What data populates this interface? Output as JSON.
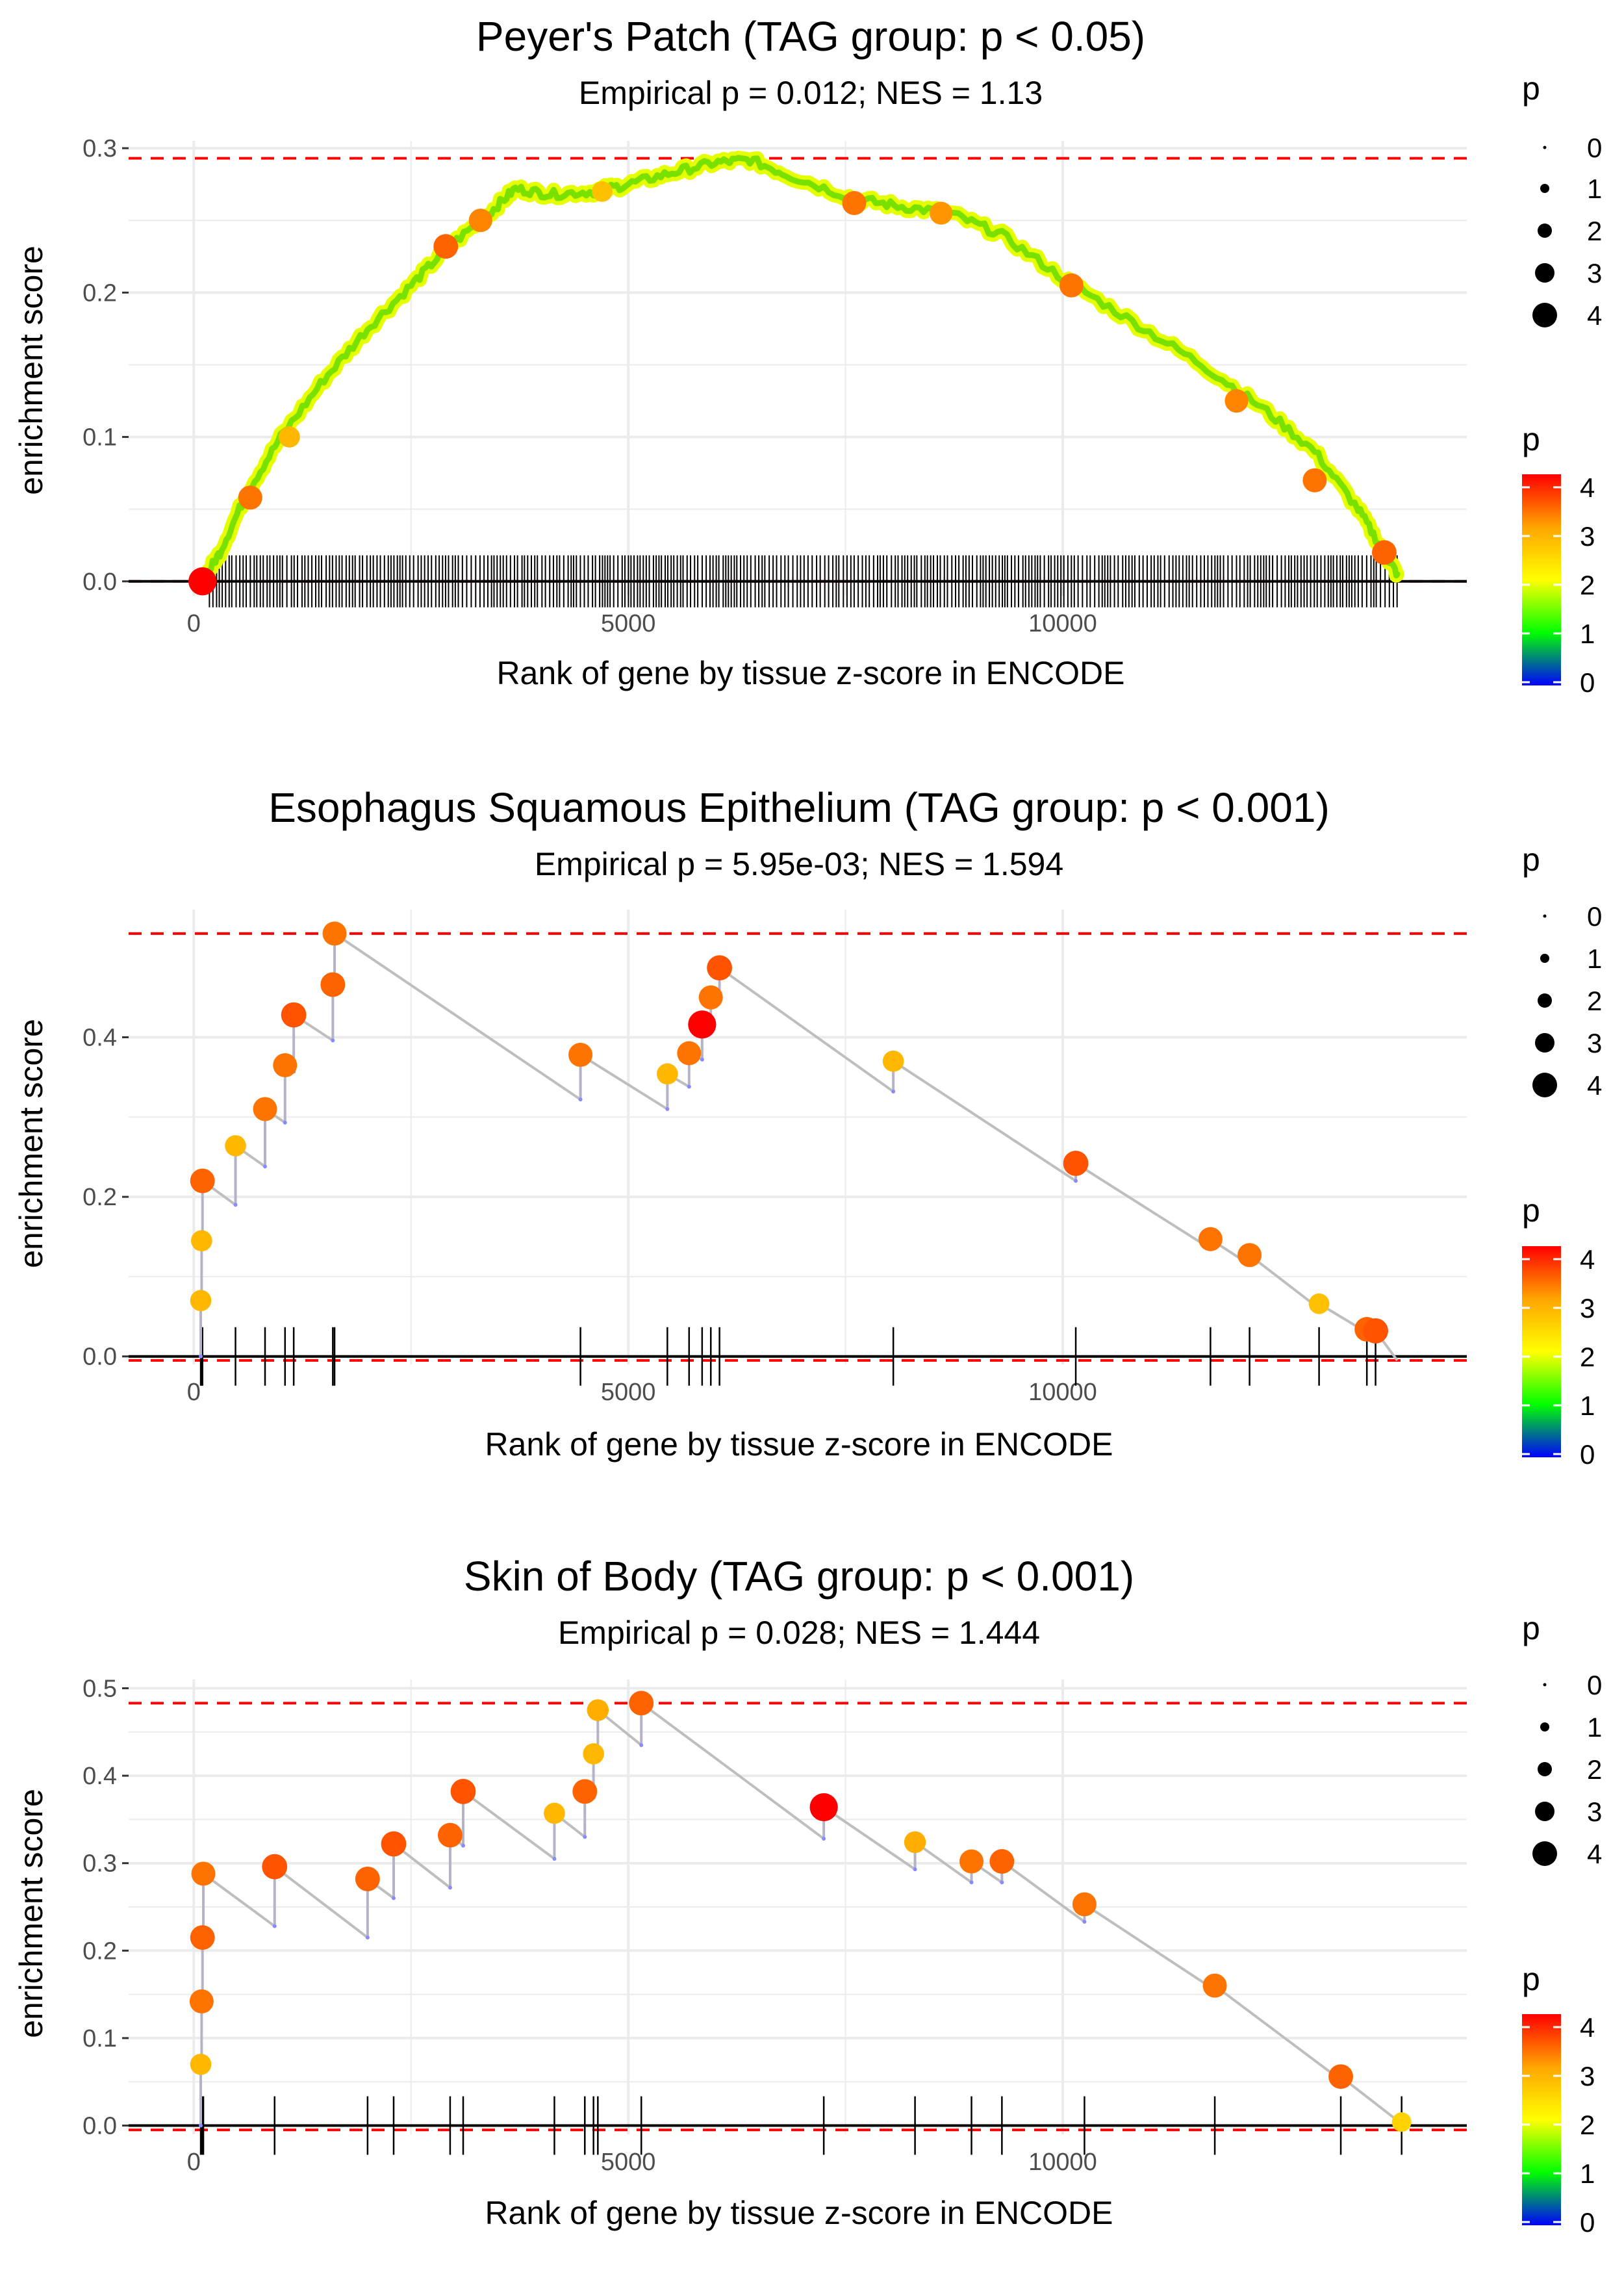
{
  "colors": {
    "grid": "#ebebeb",
    "line": "#bebebe",
    "ref": "#ff0000",
    "axis": "#000000",
    "drop": "#8a8aff"
  },
  "chart_data": [
    {
      "type": "scatter",
      "title": "Peyer's Patch (TAG group: p < 0.05)",
      "subtitle": "Empirical p = 0.012; NES = 1.13",
      "xlabel": "Rank of gene by tissue z-score in ENCODE",
      "ylabel": "enrichment score",
      "xlim": [
        -750,
        14650
      ],
      "ylim": [
        -0.01,
        0.305
      ],
      "xticks": [
        0,
        5000,
        10000
      ],
      "xtick_labels": [
        "0",
        "5000",
        "10000"
      ],
      "yticks": [
        0,
        0.1,
        0.2,
        0.3
      ],
      "ytick_labels": [
        "0.0",
        "0.1",
        "0.2",
        "0.3"
      ],
      "max_es": 0.293,
      "min_es": 0.0,
      "dense": true,
      "curve": [
        [
          100,
          0
        ],
        [
          300,
          0.02
        ],
        [
          600,
          0.06
        ],
        [
          1000,
          0.1
        ],
        [
          1500,
          0.14
        ],
        [
          2000,
          0.175
        ],
        [
          2500,
          0.205
        ],
        [
          2900,
          0.23
        ],
        [
          3400,
          0.255
        ],
        [
          3700,
          0.272
        ],
        [
          4100,
          0.268
        ],
        [
          4600,
          0.27
        ],
        [
          5000,
          0.275
        ],
        [
          5500,
          0.283
        ],
        [
          6000,
          0.29
        ],
        [
          6400,
          0.292
        ],
        [
          6900,
          0.28
        ],
        [
          7600,
          0.265
        ],
        [
          8100,
          0.26
        ],
        [
          8700,
          0.255
        ],
        [
          9300,
          0.24
        ],
        [
          10000,
          0.21
        ],
        [
          10800,
          0.18
        ],
        [
          11600,
          0.15
        ],
        [
          12300,
          0.12
        ],
        [
          12900,
          0.09
        ],
        [
          13400,
          0.05
        ],
        [
          13700,
          0.02
        ],
        [
          13850,
          0.005
        ]
      ],
      "points": [
        [
          100,
          0,
          4
        ],
        [
          650,
          0.058,
          3.3
        ],
        [
          1100,
          0.1,
          2.8
        ],
        [
          2900,
          0.232,
          3.4
        ],
        [
          3300,
          0.25,
          3.2
        ],
        [
          4700,
          0.27,
          2.7
        ],
        [
          7600,
          0.262,
          3.3
        ],
        [
          8600,
          0.255,
          3.1
        ],
        [
          10100,
          0.205,
          3.3
        ],
        [
          12000,
          0.125,
          3.2
        ],
        [
          12900,
          0.07,
          3.3
        ],
        [
          13700,
          0.02,
          3.4
        ]
      ],
      "p_legend": {
        "title": "p",
        "sizes": [
          "0",
          "1",
          "2",
          "3",
          "4"
        ]
      },
      "color_legend": {
        "title": "p",
        "labels": [
          "0",
          "1",
          "2",
          "3",
          "4"
        ]
      }
    },
    {
      "type": "scatter",
      "title": "Esophagus Squamous Epithelium (TAG group: p < 0.001)",
      "subtitle": "Empirical p = 5.95e-03; NES = 1.594",
      "xlabel": "Rank of gene by tissue z-score in ENCODE",
      "ylabel": "enrichment score",
      "xlim": [
        -750,
        14650
      ],
      "ylim": [
        -0.01,
        0.56
      ],
      "xticks": [
        0,
        5000,
        10000
      ],
      "xtick_labels": [
        "0",
        "5000",
        "10000"
      ],
      "yticks": [
        0,
        0.2,
        0.4
      ],
      "ytick_labels": [
        "0.0",
        "0.2",
        "0.4"
      ],
      "max_es": 0.53,
      "min_es": -0.005,
      "dense": false,
      "hits": [
        {
          "x": 80,
          "lo": 0,
          "hi": 0.07,
          "p": 2.8
        },
        {
          "x": 90,
          "lo": 0.07,
          "hi": 0.145,
          "p": 2.8
        },
        {
          "x": 100,
          "lo": 0.145,
          "hi": 0.22,
          "p": 3.4
        },
        {
          "x": 480,
          "lo": 0.19,
          "hi": 0.264,
          "p": 2.8
        },
        {
          "x": 820,
          "lo": 0.238,
          "hi": 0.31,
          "p": 3.3
        },
        {
          "x": 1050,
          "lo": 0.293,
          "hi": 0.365,
          "p": 3.3
        },
        {
          "x": 1150,
          "lo": 0.357,
          "hi": 0.428,
          "p": 3.5
        },
        {
          "x": 1600,
          "lo": 0.396,
          "hi": 0.466,
          "p": 3.4
        },
        {
          "x": 1620,
          "lo": 0.466,
          "hi": 0.53,
          "p": 3.3
        },
        {
          "x": 4450,
          "lo": 0.322,
          "hi": 0.378,
          "p": 3.3
        },
        {
          "x": 5450,
          "lo": 0.31,
          "hi": 0.354,
          "p": 2.8
        },
        {
          "x": 5700,
          "lo": 0.338,
          "hi": 0.38,
          "p": 3.3
        },
        {
          "x": 5850,
          "lo": 0.372,
          "hi": 0.416,
          "p": 4.0
        },
        {
          "x": 5950,
          "lo": 0.41,
          "hi": 0.45,
          "p": 3.3
        },
        {
          "x": 6050,
          "lo": 0.445,
          "hi": 0.487,
          "p": 3.5
        },
        {
          "x": 8050,
          "lo": 0.332,
          "hi": 0.37,
          "p": 2.8
        },
        {
          "x": 10150,
          "lo": 0.22,
          "hi": 0.242,
          "p": 3.5
        },
        {
          "x": 11700,
          "lo": 0.135,
          "hi": 0.147,
          "p": 3.3
        },
        {
          "x": 12150,
          "lo": 0.115,
          "hi": 0.127,
          "p": 3.3
        },
        {
          "x": 12950,
          "lo": 0.06,
          "hi": 0.066,
          "p": 2.7
        },
        {
          "x": 13500,
          "lo": 0.03,
          "hi": 0.034,
          "p": 3.4
        },
        {
          "x": 13600,
          "lo": 0.028,
          "hi": 0.032,
          "p": 3.5
        }
      ],
      "end": [
        13850,
        -0.005
      ],
      "p_legend": {
        "title": "p",
        "sizes": [
          "0",
          "1",
          "2",
          "3",
          "4"
        ]
      },
      "color_legend": {
        "title": "p",
        "labels": [
          "0",
          "1",
          "2",
          "3",
          "4"
        ]
      }
    },
    {
      "type": "scatter",
      "title": "Skin of Body (TAG group: p < 0.001)",
      "subtitle": "Empirical p = 0.028; NES = 1.444",
      "xlabel": "Rank of gene by tissue z-score in ENCODE",
      "ylabel": "enrichment score",
      "xlim": [
        -750,
        14650
      ],
      "ylim": [
        -0.01,
        0.51
      ],
      "xticks": [
        0,
        5000,
        10000
      ],
      "xtick_labels": [
        "0",
        "5000",
        "10000"
      ],
      "yticks": [
        0,
        0.1,
        0.2,
        0.3,
        0.4,
        0.5
      ],
      "ytick_labels": [
        "0.0",
        "0.1",
        "0.2",
        "0.3",
        "0.4",
        "0.5"
      ],
      "max_es": 0.483,
      "min_es": -0.005,
      "dense": false,
      "hits": [
        {
          "x": 80,
          "lo": 0,
          "hi": 0.07,
          "p": 2.8
        },
        {
          "x": 90,
          "lo": 0.07,
          "hi": 0.142,
          "p": 3.3
        },
        {
          "x": 100,
          "lo": 0.142,
          "hi": 0.215,
          "p": 3.4
        },
        {
          "x": 110,
          "lo": 0.215,
          "hi": 0.288,
          "p": 3.3
        },
        {
          "x": 930,
          "lo": 0.228,
          "hi": 0.296,
          "p": 3.5
        },
        {
          "x": 2000,
          "lo": 0.215,
          "hi": 0.282,
          "p": 3.4
        },
        {
          "x": 2300,
          "lo": 0.26,
          "hi": 0.322,
          "p": 3.5
        },
        {
          "x": 2950,
          "lo": 0.272,
          "hi": 0.332,
          "p": 3.4
        },
        {
          "x": 3100,
          "lo": 0.32,
          "hi": 0.382,
          "p": 3.5
        },
        {
          "x": 4150,
          "lo": 0.305,
          "hi": 0.357,
          "p": 2.8
        },
        {
          "x": 4500,
          "lo": 0.33,
          "hi": 0.382,
          "p": 3.4
        },
        {
          "x": 4600,
          "lo": 0.375,
          "hi": 0.425,
          "p": 2.8
        },
        {
          "x": 4650,
          "lo": 0.425,
          "hi": 0.475,
          "p": 2.9
        },
        {
          "x": 5150,
          "lo": 0.435,
          "hi": 0.483,
          "p": 3.4
        },
        {
          "x": 7250,
          "lo": 0.328,
          "hi": 0.364,
          "p": 4.0
        },
        {
          "x": 8300,
          "lo": 0.293,
          "hi": 0.324,
          "p": 2.9
        },
        {
          "x": 8950,
          "lo": 0.278,
          "hi": 0.302,
          "p": 3.3
        },
        {
          "x": 9300,
          "lo": 0.278,
          "hi": 0.302,
          "p": 3.4
        },
        {
          "x": 10250,
          "lo": 0.233,
          "hi": 0.253,
          "p": 3.3
        },
        {
          "x": 11750,
          "lo": 0.155,
          "hi": 0.16,
          "p": 3.3
        },
        {
          "x": 13200,
          "lo": 0.052,
          "hi": 0.056,
          "p": 3.4
        },
        {
          "x": 13900,
          "lo": 0.002,
          "hi": 0.004,
          "p": 2.5
        }
      ],
      "end": [
        13950,
        0.0
      ],
      "p_legend": {
        "title": "p",
        "sizes": [
          "0",
          "1",
          "2",
          "3",
          "4"
        ]
      },
      "color_legend": {
        "title": "p",
        "labels": [
          "0",
          "1",
          "2",
          "3",
          "4"
        ]
      }
    }
  ]
}
